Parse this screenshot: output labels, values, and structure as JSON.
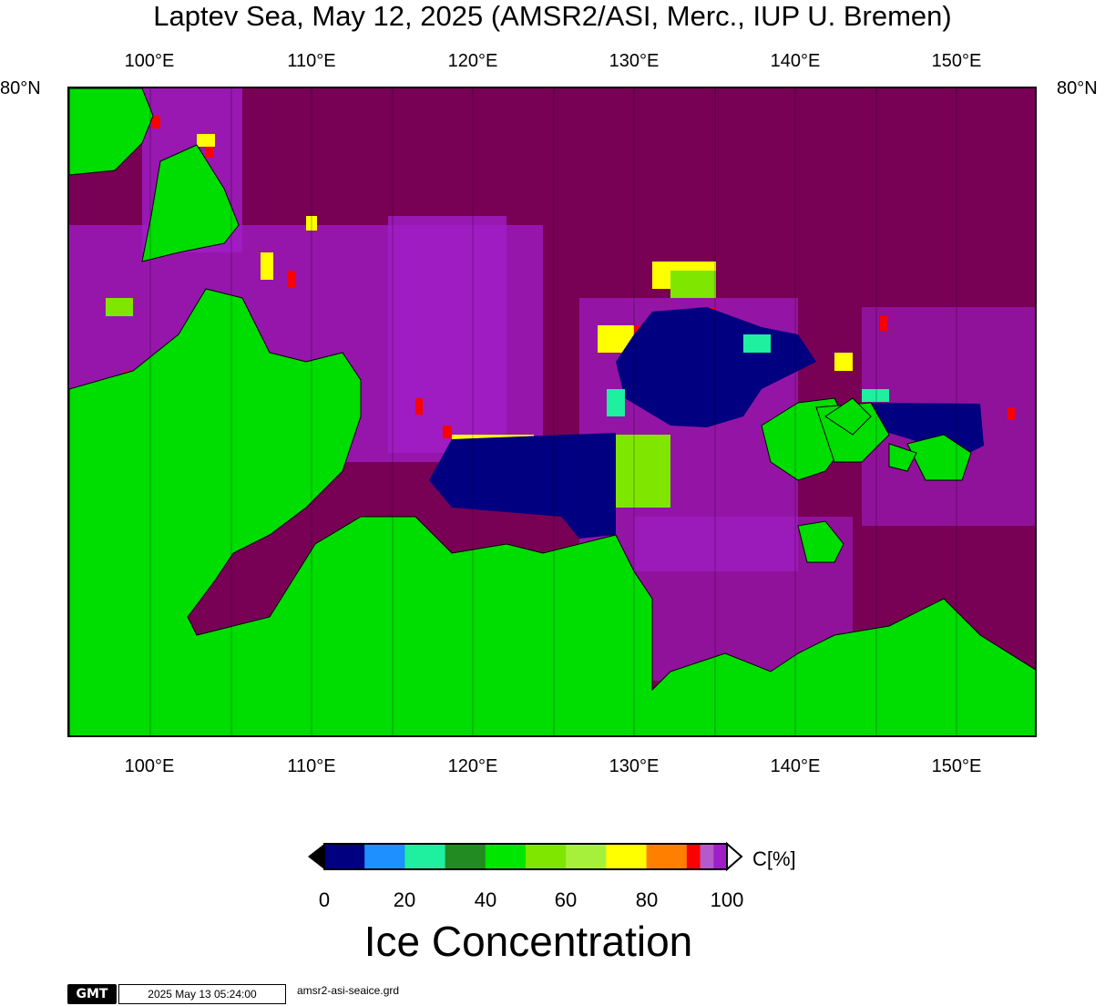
{
  "title": "Laptev Sea, May 12, 2025 (AMSR2/ASI, Merc., IUP U. Bremen)",
  "axes": {
    "lon_labels": [
      "100°E",
      "110°E",
      "120°E",
      "130°E",
      "140°E",
      "150°E"
    ],
    "lat_left": "80°N",
    "lat_right": "80°N"
  },
  "colors": {
    "land": "#00dd00",
    "open_water_ice_100": "#780055",
    "ice_edge_purple": "#a01ec8",
    "dark_blue": "#000080"
  },
  "colorbar": {
    "unit_label": "C[%]",
    "ticks": [
      "0",
      "20",
      "40",
      "60",
      "80",
      "100"
    ],
    "swatches": [
      "#000080",
      "#1e90ff",
      "#1ef0a0",
      "#228b22",
      "#00e600",
      "#7fe600",
      "#a6f03c",
      "#ffff00",
      "#ff8000",
      "#ff0000",
      "#b45acd",
      "#a01ec8"
    ],
    "title": "Ice Concentration"
  },
  "footer": {
    "logo_text": "GMT",
    "timestamp": "2025 May 13 05:24:00",
    "filename": "amsr2-asi-seaice.grd"
  }
}
